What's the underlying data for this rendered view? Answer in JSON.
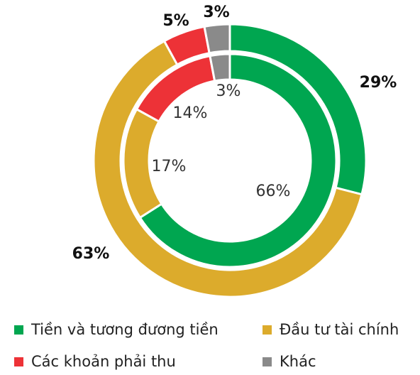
{
  "chart_data": {
    "type": "nested-donut",
    "categories": [
      "Tiền và tương đương tiền",
      "Đầu tư tài chính",
      "Các khoản phải thu",
      "Khác"
    ],
    "colors": [
      "#00a650",
      "#dcab2c",
      "#ed3237",
      "#8a8a8a"
    ],
    "series": [
      {
        "values": [
          29,
          63,
          5,
          3
        ],
        "value_labels": [
          "29%",
          "63%",
          "5%",
          "3%"
        ]
      },
      {
        "values": [
          66,
          17,
          14,
          3
        ],
        "value_labels": [
          "66%",
          "17%",
          "14%",
          "3%"
        ]
      }
    ]
  }
}
